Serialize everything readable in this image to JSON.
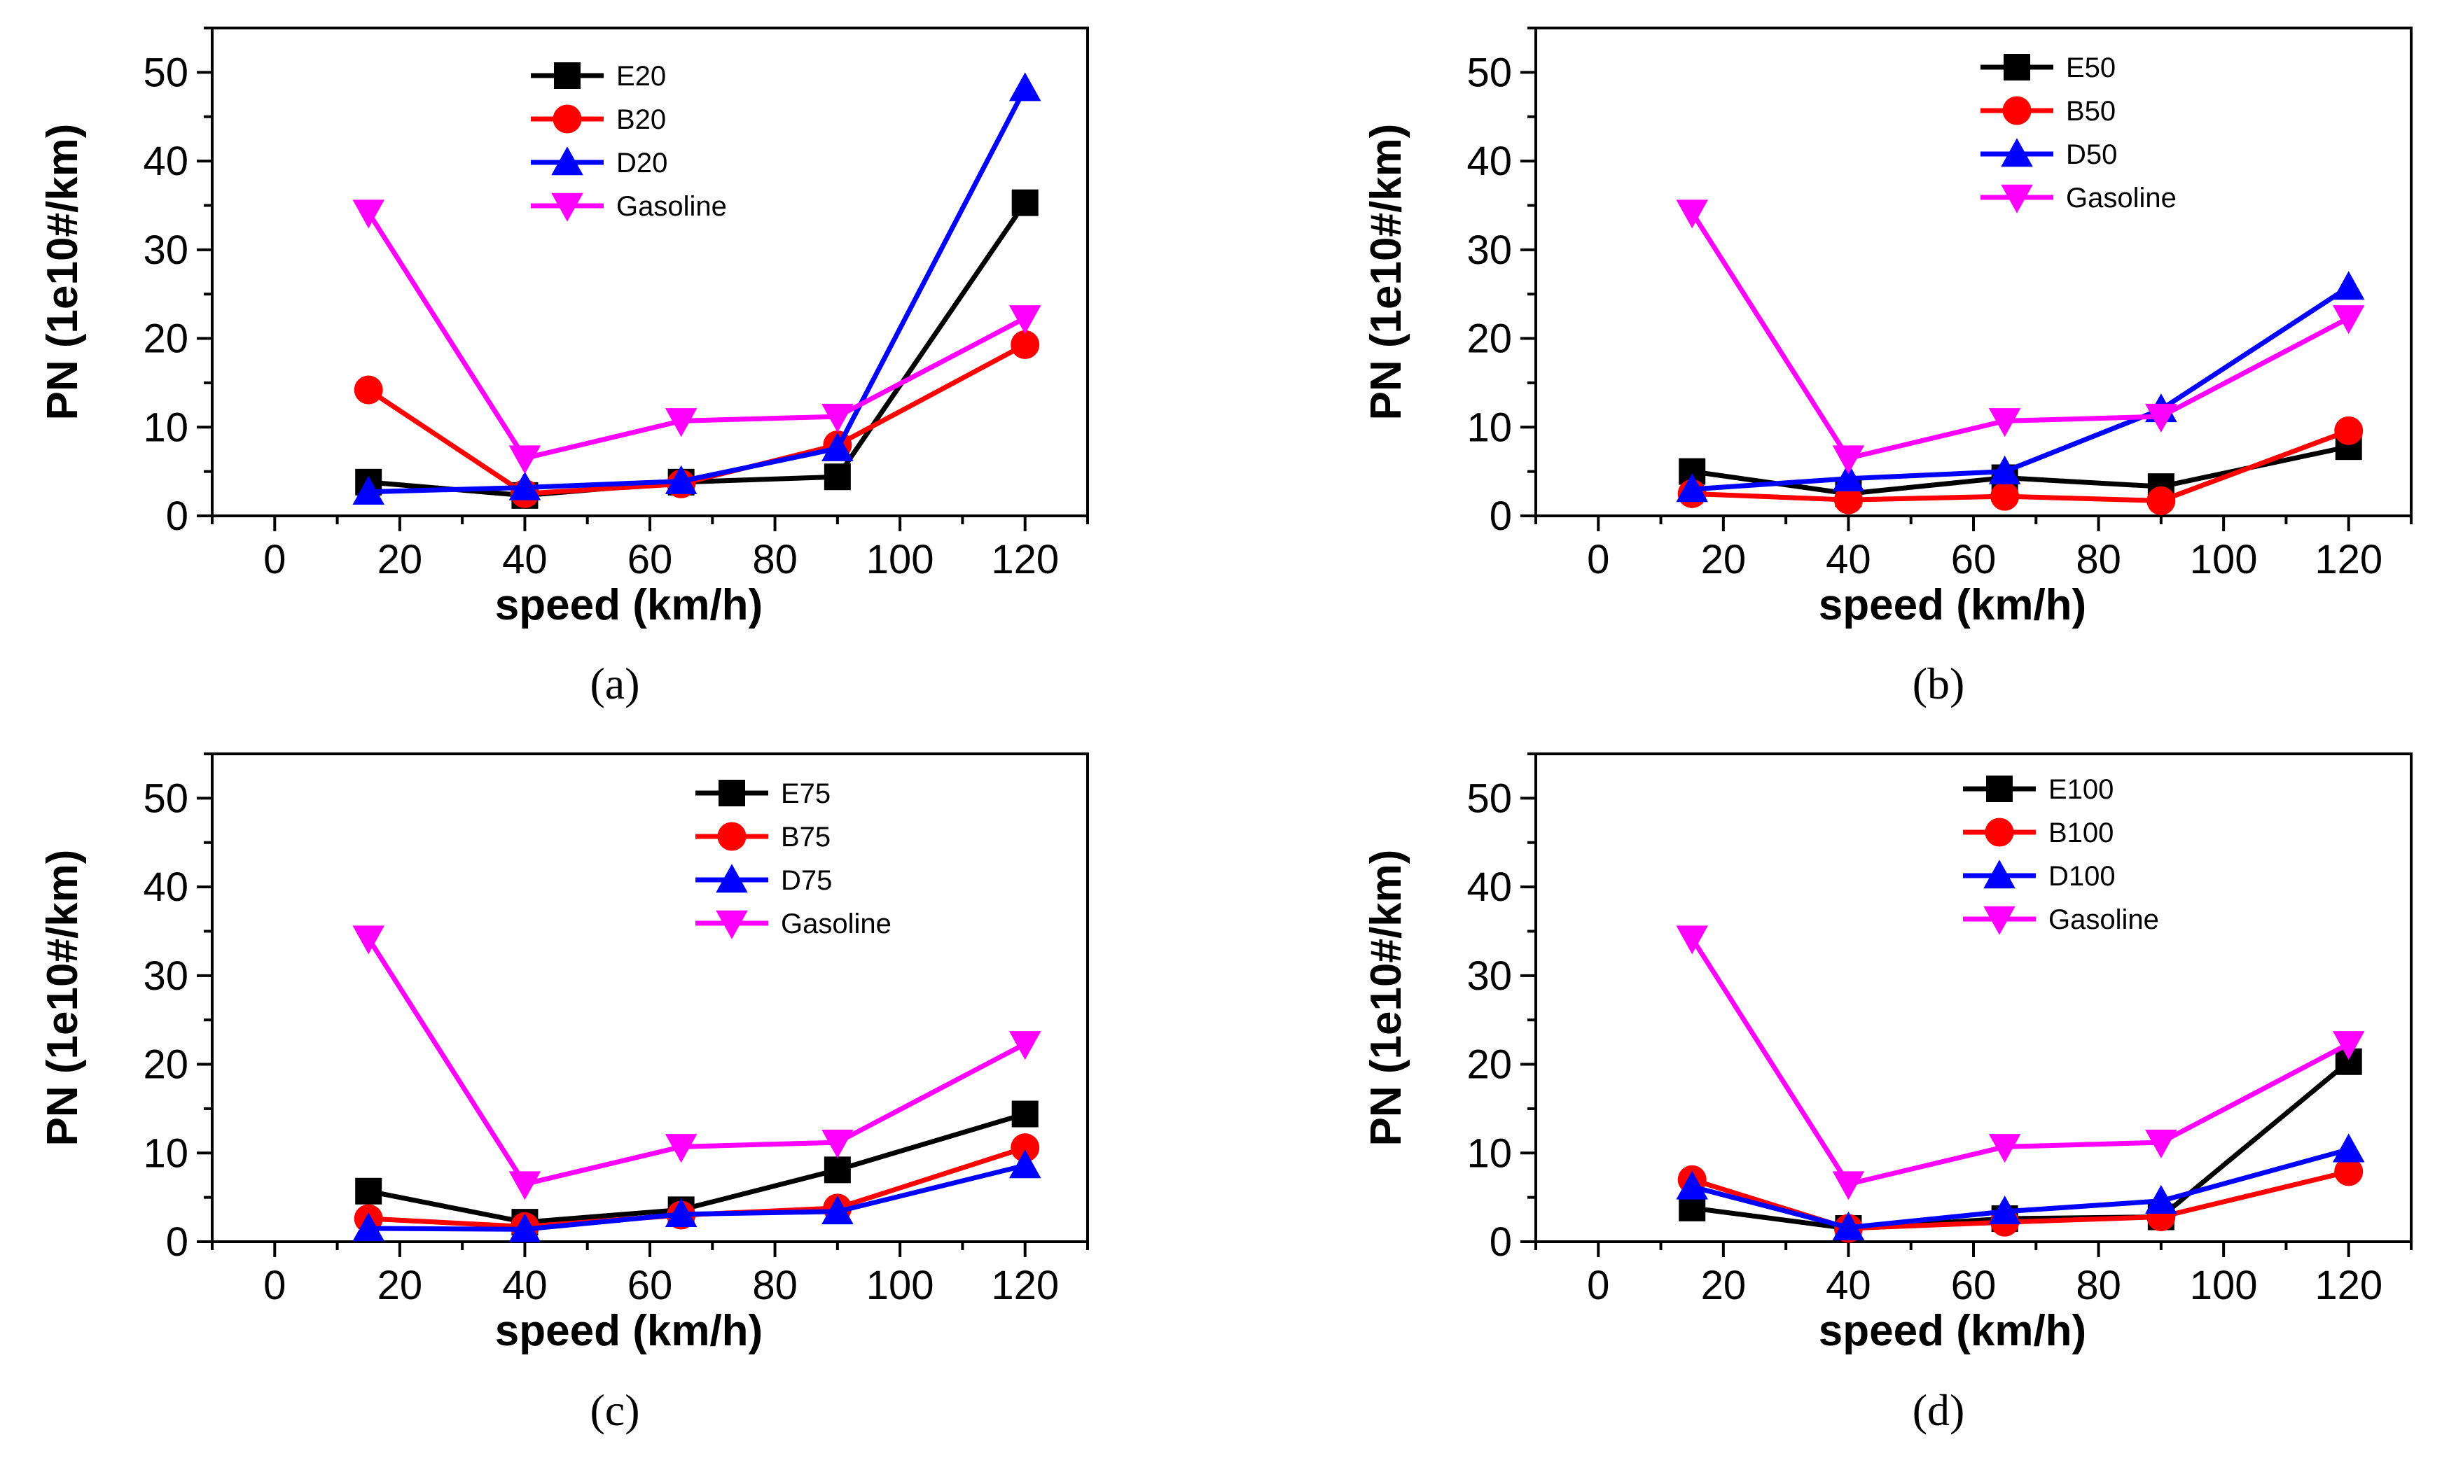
{
  "chart_data": [
    {
      "type": "line",
      "panel_label": "(a)",
      "xlabel": "speed (km/h)",
      "ylabel": "PN (1e10#/km)",
      "xlim": [
        -10,
        130
      ],
      "ylim": [
        0,
        55
      ],
      "x_ticks": [
        0,
        20,
        40,
        60,
        80,
        100,
        120
      ],
      "y_ticks": [
        0,
        10,
        20,
        30,
        40,
        50
      ],
      "x_tick_labels": [
        "0",
        "20",
        "40",
        "60",
        "80",
        "100",
        "120"
      ],
      "y_tick_labels": [
        "0",
        "10",
        "20",
        "30",
        "40",
        "50"
      ],
      "legend_position": "top-center",
      "x": [
        15,
        40,
        65,
        90,
        120
      ],
      "series": [
        {
          "name": "E20",
          "color": "#000000",
          "marker": "square",
          "values": [
            3.8,
            2.3,
            3.8,
            4.4,
            35.3
          ]
        },
        {
          "name": "B20",
          "color": "#ff0000",
          "marker": "circle",
          "values": [
            14.2,
            2.5,
            3.6,
            8.0,
            19.3
          ]
        },
        {
          "name": "D20",
          "color": "#0000ff",
          "marker": "triangle-up",
          "values": [
            2.7,
            3.2,
            3.9,
            7.6,
            48.2
          ]
        },
        {
          "name": "Gasoline",
          "color": "#ff00ff",
          "marker": "triangle-down",
          "values": [
            34.2,
            6.5,
            10.7,
            11.2,
            22.3
          ]
        }
      ]
    },
    {
      "type": "line",
      "panel_label": "(b)",
      "xlabel": "speed (km/h)",
      "ylabel": "PN (1e10#/km)",
      "xlim": [
        -10,
        130
      ],
      "ylim": [
        0,
        55
      ],
      "x_ticks": [
        0,
        20,
        40,
        60,
        80,
        100,
        120
      ],
      "y_ticks": [
        0,
        10,
        20,
        30,
        40,
        50
      ],
      "x_tick_labels": [
        "0",
        "20",
        "40",
        "60",
        "80",
        "100",
        "120"
      ],
      "y_tick_labels": [
        "0",
        "10",
        "20",
        "30",
        "40",
        "50"
      ],
      "legend_position": "top-center",
      "x": [
        15,
        40,
        65,
        90,
        120
      ],
      "series": [
        {
          "name": "E50",
          "color": "#000000",
          "marker": "square",
          "values": [
            5.0,
            2.5,
            4.3,
            3.3,
            7.8
          ]
        },
        {
          "name": "B50",
          "color": "#ff0000",
          "marker": "circle",
          "values": [
            2.5,
            1.8,
            2.2,
            1.7,
            9.6
          ]
        },
        {
          "name": "D50",
          "color": "#0000ff",
          "marker": "triangle-up",
          "values": [
            3.0,
            4.2,
            5.0,
            12.0,
            25.8
          ]
        },
        {
          "name": "Gasoline",
          "color": "#ff00ff",
          "marker": "triangle-down",
          "values": [
            34.2,
            6.5,
            10.7,
            11.2,
            22.3
          ]
        }
      ]
    },
    {
      "type": "line",
      "panel_label": "(c)",
      "xlabel": "speed (km/h)",
      "ylabel": "PN (1e10#/km)",
      "xlim": [
        -10,
        130
      ],
      "ylim": [
        0,
        55
      ],
      "x_ticks": [
        0,
        20,
        40,
        60,
        80,
        100,
        120
      ],
      "y_ticks": [
        0,
        10,
        20,
        30,
        40,
        50
      ],
      "x_tick_labels": [
        "0",
        "20",
        "40",
        "60",
        "80",
        "100",
        "120"
      ],
      "y_tick_labels": [
        "0",
        "10",
        "20",
        "30",
        "40",
        "50"
      ],
      "legend_position": "top-right",
      "x": [
        15,
        40,
        65,
        90,
        120
      ],
      "series": [
        {
          "name": "E75",
          "color": "#000000",
          "marker": "square",
          "values": [
            5.7,
            2.2,
            3.6,
            8.1,
            14.4
          ]
        },
        {
          "name": "B75",
          "color": "#ff0000",
          "marker": "circle",
          "values": [
            2.6,
            1.7,
            3.0,
            3.8,
            10.6
          ]
        },
        {
          "name": "D75",
          "color": "#0000ff",
          "marker": "triangle-up",
          "values": [
            1.5,
            1.4,
            3.1,
            3.4,
            8.6
          ]
        },
        {
          "name": "Gasoline",
          "color": "#ff00ff",
          "marker": "triangle-down",
          "values": [
            34.2,
            6.5,
            10.7,
            11.2,
            22.3
          ]
        }
      ]
    },
    {
      "type": "line",
      "panel_label": "(d)",
      "xlabel": "speed (km/h)",
      "ylabel": "PN (1e10#/km)",
      "xlim": [
        -10,
        130
      ],
      "ylim": [
        0,
        55
      ],
      "x_ticks": [
        0,
        20,
        40,
        60,
        80,
        100,
        120
      ],
      "y_ticks": [
        0,
        10,
        20,
        30,
        40,
        50
      ],
      "x_tick_labels": [
        "0",
        "20",
        "40",
        "60",
        "80",
        "100",
        "120"
      ],
      "y_tick_labels": [
        "0",
        "10",
        "20",
        "30",
        "40",
        "50"
      ],
      "legend_position": "top-center",
      "x": [
        15,
        40,
        65,
        90,
        120
      ],
      "series": [
        {
          "name": "E100",
          "color": "#000000",
          "marker": "square",
          "values": [
            3.8,
            1.5,
            2.6,
            2.8,
            20.3
          ]
        },
        {
          "name": "B100",
          "color": "#ff0000",
          "marker": "circle",
          "values": [
            7.0,
            1.5,
            2.2,
            2.8,
            7.9
          ]
        },
        {
          "name": "D100",
          "color": "#0000ff",
          "marker": "triangle-up",
          "values": [
            6.2,
            1.6,
            3.4,
            4.6,
            10.4
          ]
        },
        {
          "name": "Gasoline",
          "color": "#ff00ff",
          "marker": "triangle-down",
          "values": [
            34.2,
            6.5,
            10.7,
            11.2,
            22.3
          ]
        }
      ]
    }
  ]
}
